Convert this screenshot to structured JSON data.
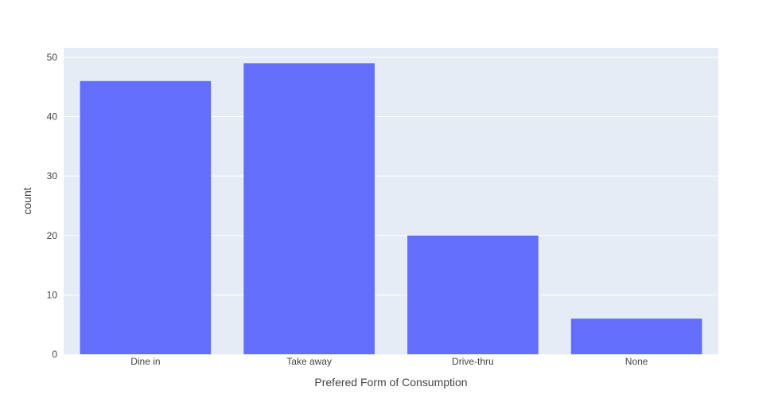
{
  "chart_data": {
    "type": "bar",
    "categories": [
      "Dine in",
      "Take away",
      "Drive-thru",
      "None"
    ],
    "values": [
      46,
      49,
      20,
      6
    ],
    "title": "",
    "xlabel": "Prefered Form of Consumption",
    "ylabel": "count",
    "ylim": [
      0,
      51.6
    ],
    "yticks": [
      "0",
      "10",
      "20",
      "30",
      "40",
      "50"
    ],
    "grid": true,
    "legend": "none",
    "colors": {
      "bar": "#636efa",
      "plot_background": "#e5ecf6",
      "gridline": "#ffffff",
      "text": "#444444"
    }
  }
}
